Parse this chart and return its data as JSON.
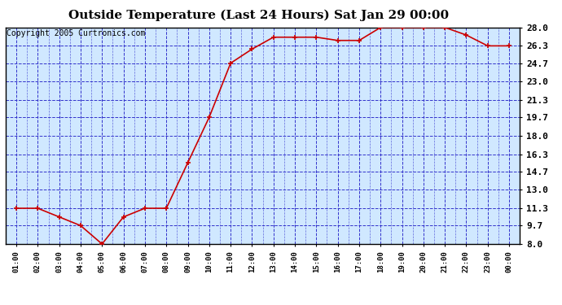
{
  "title": "Outside Temperature (Last 24 Hours) Sat Jan 29 00:00",
  "copyright": "Copyright 2005 Curtronics.com",
  "x_labels": [
    "01:00",
    "02:00",
    "03:00",
    "04:00",
    "05:00",
    "06:00",
    "07:00",
    "08:00",
    "09:00",
    "10:00",
    "11:00",
    "12:00",
    "13:00",
    "14:00",
    "15:00",
    "16:00",
    "17:00",
    "18:00",
    "19:00",
    "20:00",
    "21:00",
    "22:00",
    "23:00",
    "00:00"
  ],
  "x_values": [
    1,
    2,
    3,
    4,
    5,
    6,
    7,
    8,
    9,
    10,
    11,
    12,
    13,
    14,
    15,
    16,
    17,
    18,
    19,
    20,
    21,
    22,
    23,
    24
  ],
  "y_values": [
    11.3,
    11.3,
    10.5,
    9.7,
    8.0,
    10.5,
    11.3,
    11.3,
    15.5,
    19.7,
    24.7,
    26.0,
    27.1,
    27.1,
    27.1,
    26.8,
    26.8,
    28.0,
    28.0,
    28.0,
    28.0,
    27.3,
    26.3,
    26.3
  ],
  "y_ticks": [
    8.0,
    9.7,
    11.3,
    13.0,
    14.7,
    16.3,
    18.0,
    19.7,
    21.3,
    23.0,
    24.7,
    26.3,
    28.0
  ],
  "y_min": 8.0,
  "y_max": 28.0,
  "line_color": "#cc0000",
  "marker_color": "#cc0000",
  "plot_bg": "#d0e8ff",
  "grid_color": "#3333cc",
  "title_fontsize": 11,
  "copyright_fontsize": 7
}
